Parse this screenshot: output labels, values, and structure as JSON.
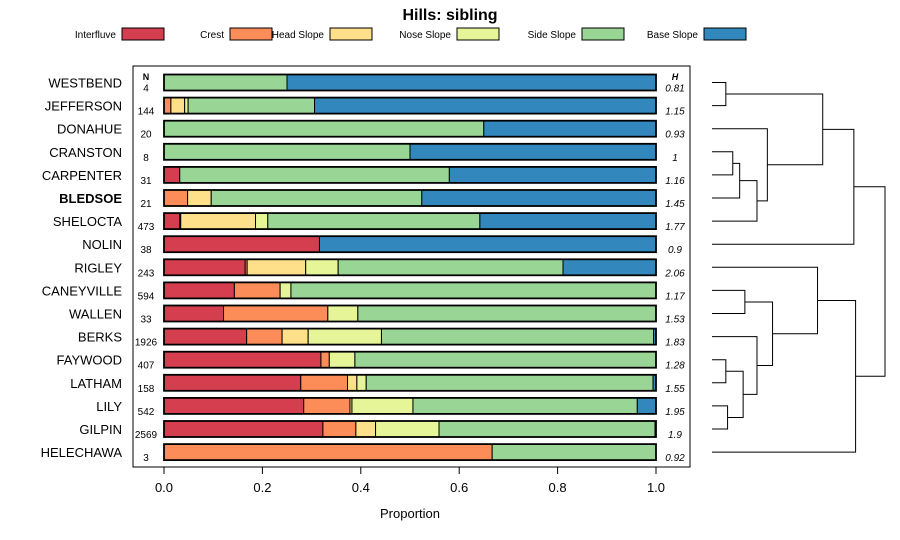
{
  "chart_data": {
    "type": "bar",
    "orientation": "horizontal-stacked",
    "title": "Hills: sibling",
    "xlabel": "Proportion",
    "xlim": [
      0,
      1
    ],
    "xticks": [
      "0.0",
      "0.2",
      "0.4",
      "0.6",
      "0.8",
      "1.0"
    ],
    "n_header": "N",
    "h_header": "H",
    "categories_legend": [
      {
        "name": "Interfluve",
        "color": "#d53e4f"
      },
      {
        "name": "Crest",
        "color": "#fc8d59"
      },
      {
        "name": "Head Slope",
        "color": "#fee08b"
      },
      {
        "name": "Nose Slope",
        "color": "#e6f598"
      },
      {
        "name": "Side Slope",
        "color": "#99d594"
      },
      {
        "name": "Base Slope",
        "color": "#3288bd"
      }
    ],
    "rows": [
      {
        "name": "WESTBEND",
        "n": "4",
        "h": "0.81",
        "bold": false,
        "values": [
          0,
          0,
          0,
          0,
          0.25,
          0.75
        ]
      },
      {
        "name": "JEFFERSON",
        "n": "144",
        "h": "1.15",
        "bold": false,
        "values": [
          0,
          0.014,
          0.028,
          0.007,
          0.257,
          0.694
        ]
      },
      {
        "name": "DONAHUE",
        "n": "20",
        "h": "0.93",
        "bold": false,
        "values": [
          0,
          0,
          0,
          0,
          0.65,
          0.35
        ]
      },
      {
        "name": "CRANSTON",
        "n": "8",
        "h": "1",
        "bold": false,
        "values": [
          0,
          0,
          0,
          0,
          0.5,
          0.5
        ]
      },
      {
        "name": "CARPENTER",
        "n": "31",
        "h": "1.16",
        "bold": false,
        "values": [
          0.032,
          0,
          0,
          0,
          0.548,
          0.42
        ]
      },
      {
        "name": "BLEDSOE",
        "n": "21",
        "h": "1.45",
        "bold": true,
        "values": [
          0,
          0.048,
          0.048,
          0,
          0.428,
          0.476
        ]
      },
      {
        "name": "SHELOCTA",
        "n": "473",
        "h": "1.77",
        "bold": false,
        "values": [
          0.032,
          0.002,
          0.152,
          0.025,
          0.431,
          0.358
        ]
      },
      {
        "name": "NOLIN",
        "n": "38",
        "h": "0.9",
        "bold": false,
        "values": [
          0.316,
          0,
          0,
          0,
          0,
          0.684
        ]
      },
      {
        "name": "RIGLEY",
        "n": "243",
        "h": "2.06",
        "bold": false,
        "values": [
          0.165,
          0.004,
          0.119,
          0.066,
          0.457,
          0.189
        ]
      },
      {
        "name": "CANEYVILLE",
        "n": "594",
        "h": "1.17",
        "bold": false,
        "values": [
          0.143,
          0.093,
          0,
          0.022,
          0.742,
          0
        ]
      },
      {
        "name": "WALLEN",
        "n": "33",
        "h": "1.53",
        "bold": false,
        "values": [
          0.121,
          0.212,
          0,
          0.061,
          0.606,
          0
        ]
      },
      {
        "name": "BERKS",
        "n": "1926",
        "h": "1.83",
        "bold": false,
        "values": [
          0.168,
          0.072,
          0.053,
          0.149,
          0.553,
          0.005
        ]
      },
      {
        "name": "FAYWOOD",
        "n": "407",
        "h": "1.28",
        "bold": false,
        "values": [
          0.319,
          0.017,
          0,
          0.052,
          0.612,
          0
        ]
      },
      {
        "name": "LATHAM",
        "n": "158",
        "h": "1.55",
        "bold": false,
        "values": [
          0.278,
          0.095,
          0.019,
          0.019,
          0.583,
          0.006
        ]
      },
      {
        "name": "LILY",
        "n": "542",
        "h": "1.95",
        "bold": false,
        "values": [
          0.284,
          0.094,
          0.004,
          0.124,
          0.456,
          0.038
        ]
      },
      {
        "name": "GILPIN",
        "n": "2569",
        "h": "1.9",
        "bold": false,
        "values": [
          0.323,
          0.067,
          0.04,
          0.129,
          0.439,
          0.002
        ]
      },
      {
        "name": "HELECHAWA",
        "n": "3",
        "h": "0.92",
        "bold": false,
        "values": [
          0,
          0.667,
          0,
          0,
          0.333,
          0
        ]
      }
    ],
    "dendrogram": {
      "leaf_order": [
        "WESTBEND",
        "JEFFERSON",
        "DONAHUE",
        "CRANSTON",
        "CARPENTER",
        "BLEDSOE",
        "SHELOCTA",
        "NOLIN",
        "RIGLEY",
        "CANEYVILLE",
        "WALLEN",
        "BERKS",
        "FAYWOOD",
        "LATHAM",
        "LILY",
        "GILPIN",
        "HELECHAWA"
      ],
      "merges": [
        {
          "id": "n1",
          "a": "WESTBEND",
          "b": "JEFFERSON",
          "height": 0.08
        },
        {
          "id": "n2",
          "a": "CRANSTON",
          "b": "CARPENTER",
          "height": 0.12
        },
        {
          "id": "n3",
          "a": "n2",
          "b": "BLEDSOE",
          "height": 0.16
        },
        {
          "id": "n4",
          "a": "n3",
          "b": "SHELOCTA",
          "height": 0.26
        },
        {
          "id": "n5",
          "a": "DONAHUE",
          "b": "n4",
          "height": 0.32
        },
        {
          "id": "n6",
          "a": "n1",
          "b": "n5",
          "height": 0.64
        },
        {
          "id": "n7",
          "a": "n6",
          "b": "NOLIN",
          "height": 0.82
        },
        {
          "id": "n8",
          "a": "CANEYVILLE",
          "b": "WALLEN",
          "height": 0.19
        },
        {
          "id": "n9",
          "a": "FAYWOOD",
          "b": "LATHAM",
          "height": 0.08
        },
        {
          "id": "n10",
          "a": "LILY",
          "b": "GILPIN",
          "height": 0.09
        },
        {
          "id": "n11",
          "a": "n9",
          "b": "n10",
          "height": 0.18
        },
        {
          "id": "n12",
          "a": "BERKS",
          "b": "n11",
          "height": 0.26
        },
        {
          "id": "n13",
          "a": "n8",
          "b": "n12",
          "height": 0.35
        },
        {
          "id": "n14",
          "a": "RIGLEY",
          "b": "n13",
          "height": 0.61
        },
        {
          "id": "n15",
          "a": "n14",
          "b": "HELECHAWA",
          "height": 0.83
        },
        {
          "id": "n16",
          "a": "n7",
          "b": "n15",
          "height": 1.0
        }
      ]
    }
  }
}
